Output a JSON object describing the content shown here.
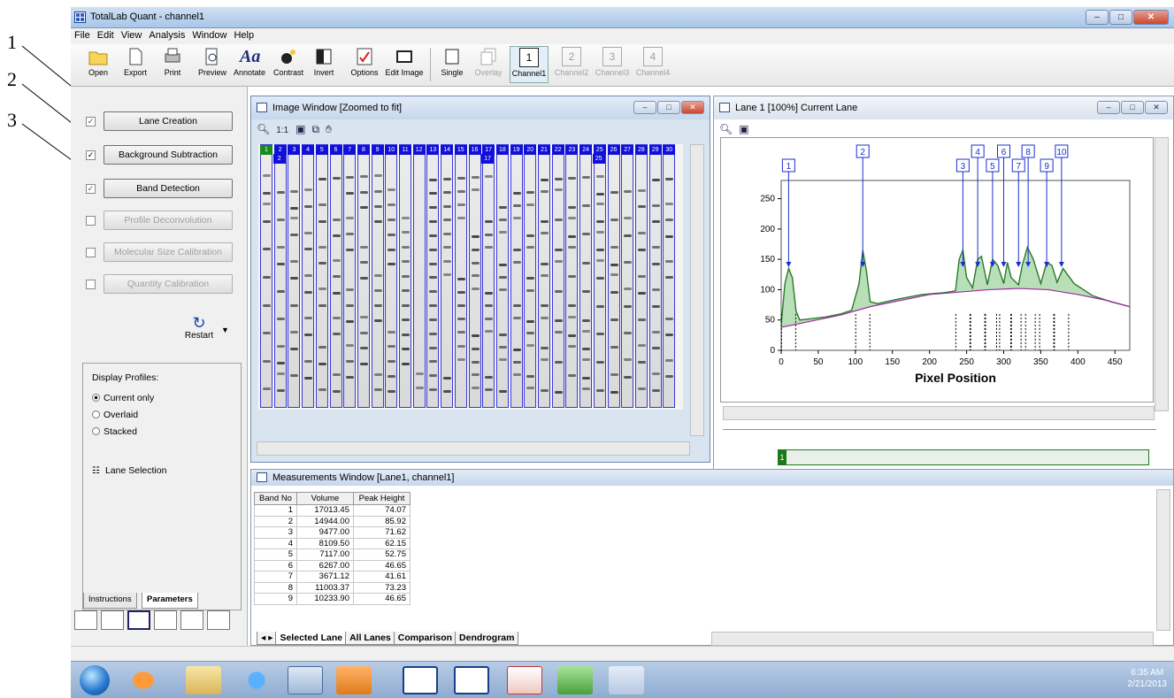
{
  "callouts": [
    "1",
    "2",
    "3"
  ],
  "window": {
    "title": "TotalLab Quant - channel1"
  },
  "menu": [
    "File",
    "Edit",
    "View",
    "Analysis",
    "Window",
    "Help"
  ],
  "toolbar": {
    "open": "Open",
    "export": "Export",
    "print": "Print",
    "preview": "Preview",
    "annotate": "Annotate",
    "contrast": "Contrast",
    "invert": "Invert",
    "options": "Options",
    "edit_image": "Edit Image",
    "single": "Single",
    "overlay": "Overlay",
    "channel1": "Channel1",
    "channel2": "Channel2",
    "channel3": "Channel3",
    "channel4": "Channel4",
    "channel_nums": [
      "1",
      "2",
      "3",
      "4"
    ]
  },
  "steps": [
    {
      "label": "Lane Creation",
      "checked": true,
      "enabled": true
    },
    {
      "label": "Background Subtraction",
      "checked": true,
      "enabled": true
    },
    {
      "label": "Band Detection",
      "checked": true,
      "enabled": true
    },
    {
      "label": "Profile Deconvolution",
      "checked": false,
      "enabled": false
    },
    {
      "label": "Molecular Size Calibration",
      "checked": false,
      "enabled": false
    },
    {
      "label": "Quantity Calibration",
      "checked": false,
      "enabled": false
    }
  ],
  "restart_label": "Restart",
  "display_profiles": {
    "heading": "Display Profiles:",
    "options": [
      "Current only",
      "Overlaid",
      "Stacked"
    ],
    "selected": "Current only",
    "lane_selection": "Lane Selection"
  },
  "panel_tabs": [
    "Instructions",
    "Parameters"
  ],
  "image_window": {
    "title": "Image Window [Zoomed to fit]",
    "zoom_label": "1:1",
    "lane_numbers": [
      "1",
      "2",
      "3",
      "4",
      "5",
      "6",
      "7",
      "8",
      "9",
      "10",
      "11",
      "12",
      "13",
      "14",
      "15",
      "16",
      "17",
      "18",
      "19",
      "20",
      "21",
      "22",
      "23",
      "24",
      "25",
      "26",
      "27",
      "28",
      "29",
      "30"
    ],
    "marked_lanes": [
      "2",
      "17",
      "25"
    ]
  },
  "lane_window": {
    "title": "Lane 1 [100%] Current Lane",
    "mini_lane_label": "1"
  },
  "chart_data": {
    "type": "line",
    "title": "",
    "xlabel": "Pixel Position",
    "ylabel": "",
    "xlim": [
      0,
      470
    ],
    "ylim": [
      0,
      280
    ],
    "xticks": [
      0,
      50,
      100,
      150,
      200,
      250,
      300,
      350,
      400,
      450
    ],
    "yticks": [
      0,
      50,
      100,
      150,
      200,
      250
    ],
    "series": [
      {
        "x": [
          0,
          5,
          10,
          15,
          20,
          25,
          40,
          60,
          80,
          95,
          105,
          110,
          115,
          120,
          130,
          160,
          190,
          220,
          235,
          240,
          245,
          250,
          258,
          265,
          270,
          278,
          285,
          292,
          300,
          305,
          310,
          320,
          325,
          332,
          340,
          350,
          358,
          365,
          372,
          380,
          395,
          420,
          445,
          470
        ],
        "y": [
          42,
          110,
          135,
          120,
          65,
          50,
          52,
          55,
          60,
          66,
          110,
          165,
          130,
          80,
          77,
          85,
          92,
          95,
          98,
          150,
          165,
          120,
          103,
          150,
          155,
          108,
          150,
          140,
          110,
          145,
          120,
          108,
          140,
          170,
          150,
          110,
          145,
          140,
          112,
          135,
          110,
          90,
          80,
          72
        ]
      },
      {
        "x": [
          0,
          40,
          80,
          120,
          160,
          200,
          240,
          280,
          320,
          360,
          400,
          440,
          470
        ],
        "y": [
          38,
          48,
          58,
          72,
          82,
          92,
          96,
          100,
          102,
          100,
          92,
          82,
          72
        ]
      }
    ],
    "peak_labels": [
      {
        "label": "1",
        "x": 10
      },
      {
        "label": "2",
        "x": 110
      },
      {
        "label": "3",
        "x": 245
      },
      {
        "label": "4",
        "x": 265
      },
      {
        "label": "5",
        "x": 285
      },
      {
        "label": "6",
        "x": 300
      },
      {
        "label": "7",
        "x": 320
      },
      {
        "label": "8",
        "x": 333
      },
      {
        "label": "9",
        "x": 358
      },
      {
        "label": "10",
        "x": 378
      }
    ]
  },
  "measurements": {
    "title": "Measurements Window [Lane1, channel1]",
    "columns": [
      "Band No",
      "Volume",
      "Peak Height"
    ],
    "rows": [
      [
        "1",
        "17013.45",
        "74.07"
      ],
      [
        "2",
        "14944.00",
        "85.92"
      ],
      [
        "3",
        "9477.00",
        "71.62"
      ],
      [
        "4",
        "8109.50",
        "62.15"
      ],
      [
        "5",
        "7117.00",
        "52.75"
      ],
      [
        "6",
        "6267.00",
        "46.65"
      ],
      [
        "7",
        "3671.12",
        "41.61"
      ],
      [
        "8",
        "11003.37",
        "73.23"
      ],
      [
        "9",
        "10233.90",
        "46.65"
      ]
    ],
    "tabs": [
      "Selected Lane",
      "All Lanes",
      "Comparison",
      "Dendrogram"
    ]
  },
  "tray": {
    "time": "6:35 AM",
    "date": "2/21/2013"
  }
}
